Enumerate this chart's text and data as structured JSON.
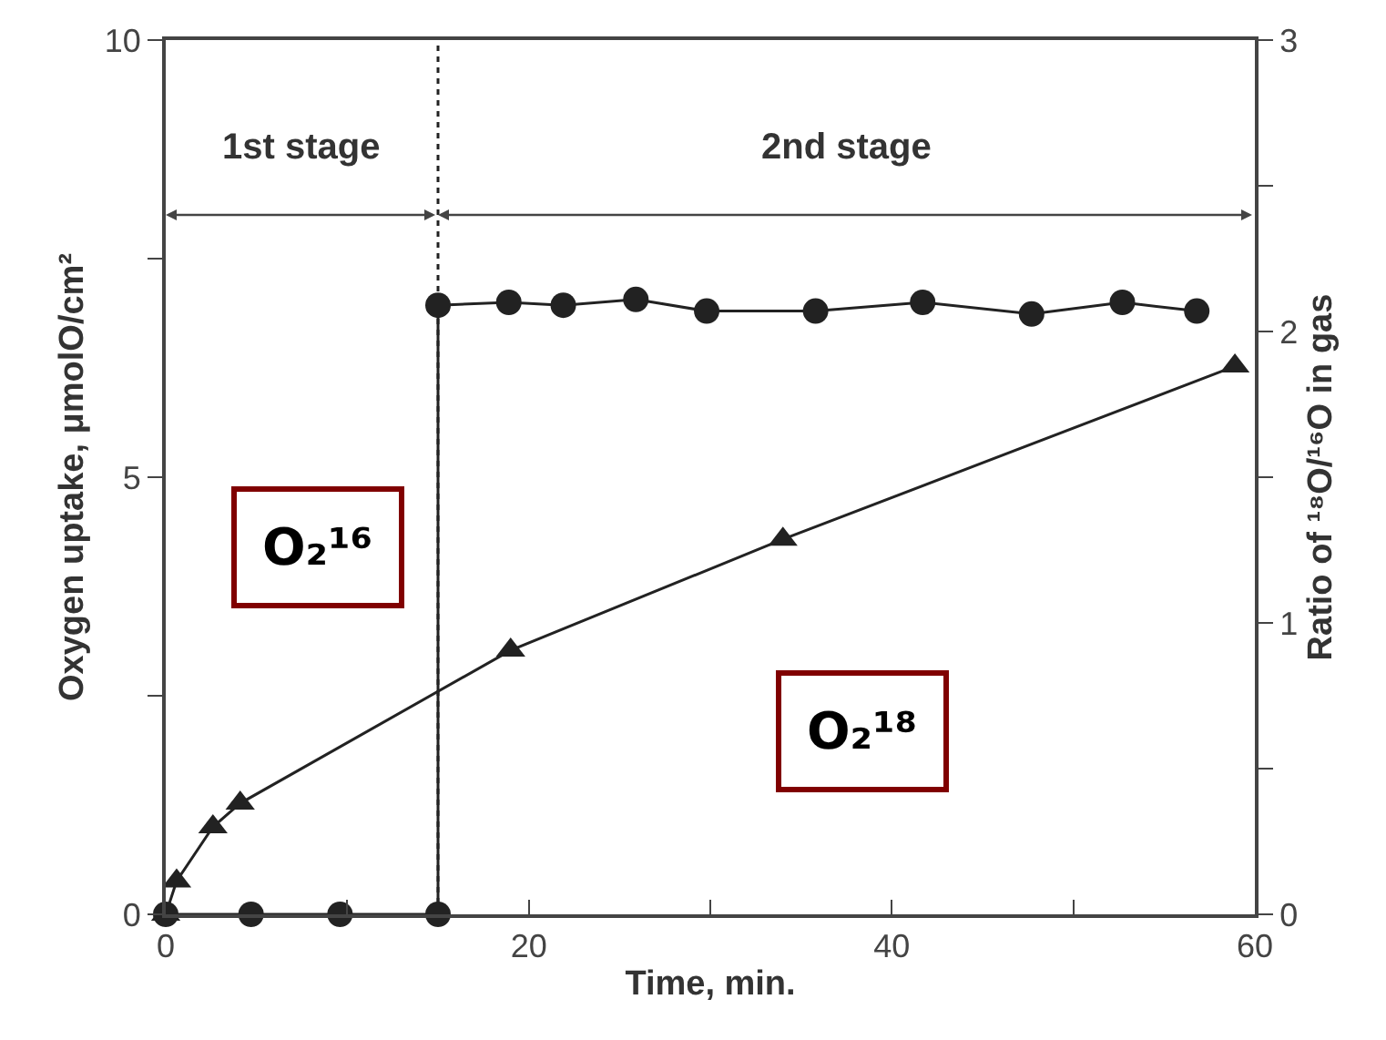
{
  "chart_data": {
    "type": "line",
    "xlabel": "Time, min.",
    "ylabel": "Oxygen uptake, μmolO/cm²",
    "y2label": "Ratio of ¹⁸O/¹⁶O in gas",
    "series": [
      {
        "color": "#222222",
        "marker": "triangle",
        "x": [
          0,
          0.6,
          2.6,
          4.1,
          19.0,
          34.0,
          58.9
        ],
        "values": [
          0,
          0.38,
          1.0,
          1.27,
          3.02,
          4.29,
          6.27
        ]
      },
      {
        "color": "#222222",
        "marker": "circle",
        "axis": "y2",
        "x": [
          0,
          4.7,
          9.6,
          15.0,
          15.0,
          18.9,
          21.9,
          25.9,
          29.8,
          35.8,
          41.7,
          47.7,
          52.7,
          56.8
        ],
        "values": [
          0,
          0,
          0,
          0,
          2.09,
          2.1,
          2.09,
          2.11,
          2.07,
          2.07,
          2.1,
          2.06,
          2.1,
          2.07
        ]
      }
    ],
    "xlim": [
      0,
      60
    ],
    "xticks": [
      0,
      {
        "value": 10,
        "label": null
      },
      20,
      {
        "value": 30,
        "label": null
      },
      40,
      {
        "value": 50,
        "label": null
      },
      60
    ],
    "ylim": [
      0,
      10
    ],
    "yticks": [
      0,
      {
        "value": 2.5,
        "label": null
      },
      5,
      {
        "value": 7.5,
        "label": null
      },
      10
    ],
    "y2lim": [
      0,
      3
    ],
    "y2ticks": [
      0,
      {
        "value": 0.5,
        "label": null
      },
      1,
      {
        "value": 1.5,
        "label": null
      },
      2,
      {
        "value": 2.5,
        "label": null
      },
      3
    ],
    "ref_lines": [
      {
        "axis": "x",
        "value": 15,
        "line_style": "dotted",
        "color": "#222222"
      }
    ],
    "annotations": [
      "1st stage",
      "2nd stage",
      "O₂¹⁶",
      "O₂¹⁸"
    ]
  }
}
